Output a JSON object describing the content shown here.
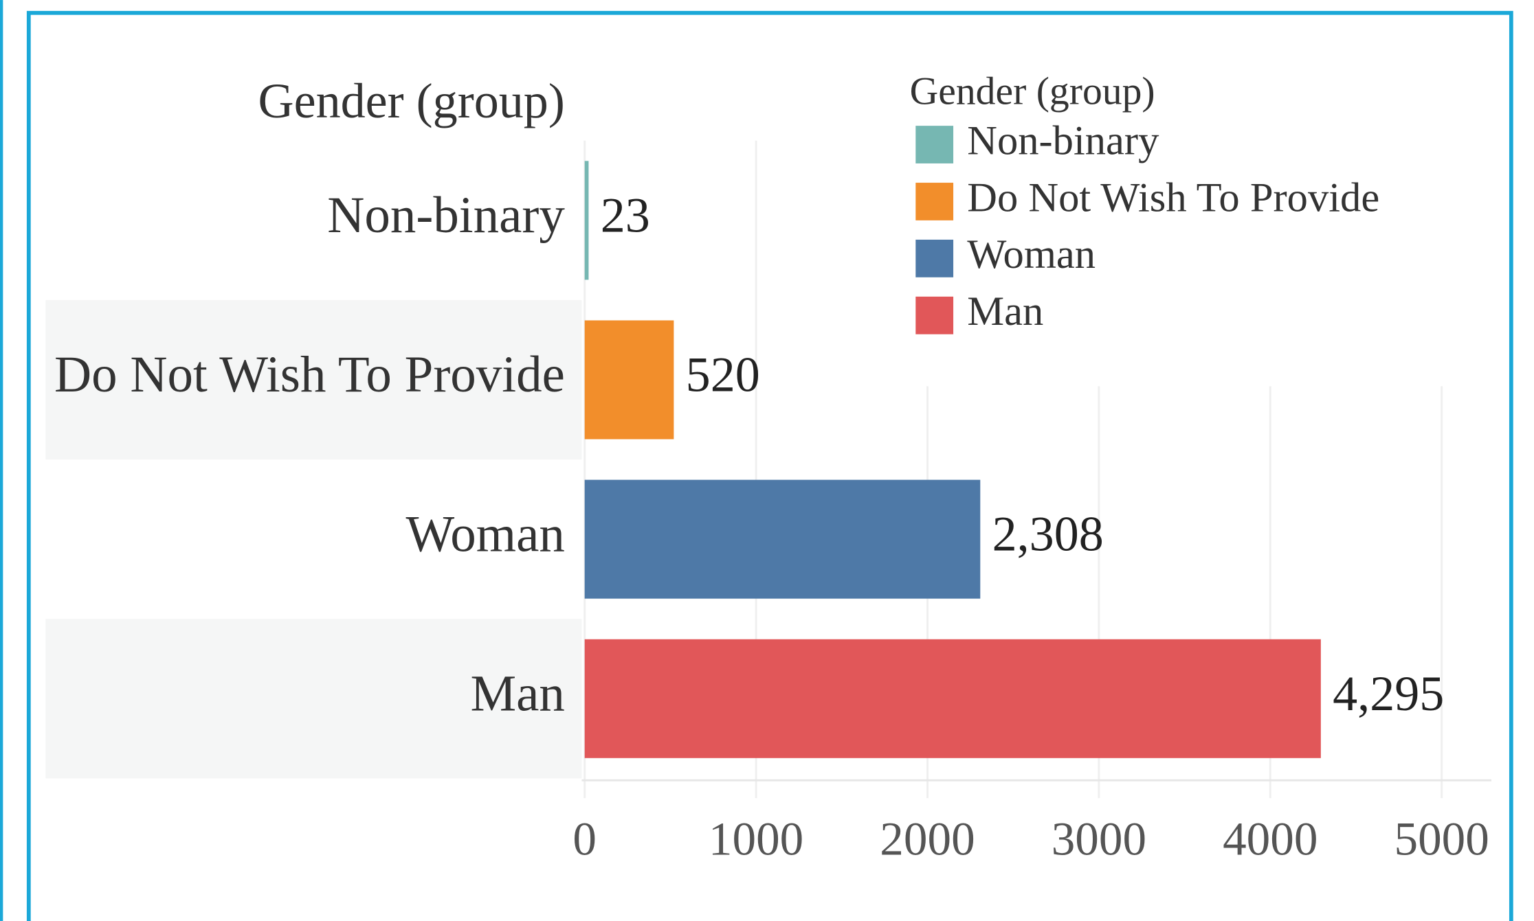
{
  "chart_data": {
    "type": "bar",
    "orientation": "horizontal",
    "title": "Gender (group)",
    "legend_title": "Gender (group)",
    "categories": [
      "Non-binary",
      "Do Not Wish To Provide",
      "Woman",
      "Man"
    ],
    "values": [
      23,
      520,
      2308,
      4295
    ],
    "value_labels": [
      "23",
      "520",
      "2,308",
      "4,295"
    ],
    "colors": [
      "#76b7b2",
      "#f28e2b",
      "#4e79a7",
      "#e15759"
    ],
    "xlim": [
      0,
      5290
    ],
    "xticks": [
      0,
      1000,
      2000,
      3000,
      4000,
      5000
    ],
    "grid": true,
    "legend": "top-right"
  }
}
